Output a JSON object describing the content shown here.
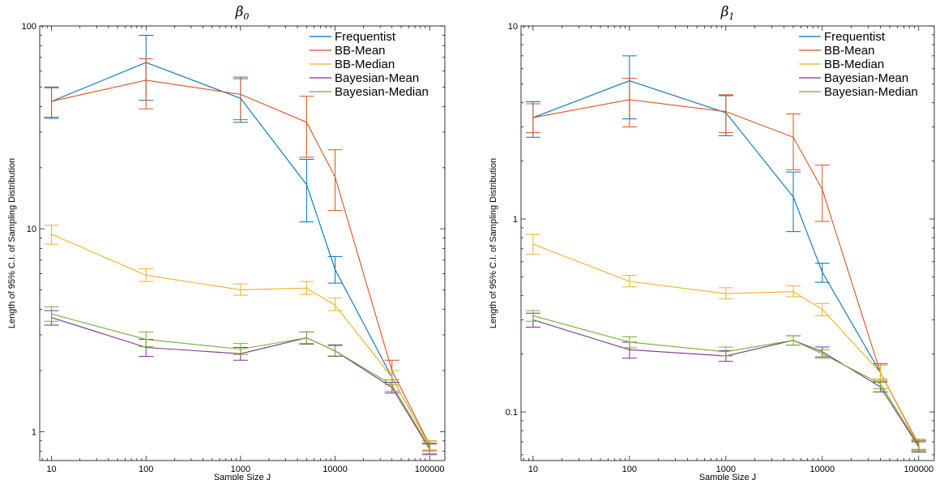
{
  "chart_data": [
    {
      "type": "line",
      "title": "β",
      "title_subscript": "0",
      "xlabel": "Sample Size J",
      "ylabel": "Length of 95% C.I. of Sampling Distribution",
      "xscale": "log",
      "yscale": "log",
      "xlim": [
        7.5,
        145000
      ],
      "ylim": [
        0.72,
        100
      ],
      "xticks": [
        10,
        100,
        1000,
        10000,
        100000
      ],
      "xtick_labels": [
        "10",
        "100",
        "1000",
        "10000",
        "100000"
      ],
      "yticks": [
        1,
        10,
        100
      ],
      "ytick_labels": [
        "1",
        "10",
        "100"
      ],
      "grid": false,
      "legend": "top-right",
      "x": [
        10,
        100,
        1000,
        5000,
        10000,
        40000,
        100000
      ],
      "series": [
        {
          "name": "Frequentist",
          "color": "#0072BD",
          "values": [
            42.5,
            66,
            44,
            16.5,
            6.3,
            1.85,
            0.85
          ],
          "err_low": [
            35,
            43,
            33.5,
            10.8,
            5.4,
            1.7,
            0.8
          ],
          "err_high": [
            50,
            90,
            55,
            22,
            7.3,
            2.0,
            0.9
          ]
        },
        {
          "name": "BB-Mean",
          "color": "#D95319",
          "values": [
            42.5,
            54,
            46,
            33.5,
            18,
            2.0,
            0.86
          ],
          "err_low": [
            35.5,
            39,
            34.5,
            22.5,
            12.3,
            1.8,
            0.81
          ],
          "err_high": [
            49.5,
            69,
            56,
            45,
            24.5,
            2.25,
            0.9
          ]
        },
        {
          "name": "BB-Median",
          "color": "#EDB120",
          "values": [
            9.4,
            5.9,
            5.0,
            5.1,
            4.2,
            1.85,
            0.85
          ],
          "err_low": [
            8.4,
            5.5,
            4.7,
            4.75,
            3.95,
            1.7,
            0.8
          ],
          "err_high": [
            10.4,
            6.35,
            5.35,
            5.5,
            4.55,
            2.0,
            0.9
          ]
        },
        {
          "name": "Bayesian-Mean",
          "color": "#7E2F8E",
          "values": [
            3.65,
            2.6,
            2.42,
            2.9,
            2.5,
            1.65,
            0.82
          ],
          "err_low": [
            3.35,
            2.35,
            2.25,
            2.7,
            2.35,
            1.55,
            0.77
          ],
          "err_high": [
            3.95,
            2.85,
            2.6,
            3.1,
            2.68,
            1.75,
            0.87
          ]
        },
        {
          "name": "Bayesian-Median",
          "color": "#77AC30",
          "values": [
            3.8,
            2.85,
            2.55,
            2.9,
            2.5,
            1.7,
            0.83
          ],
          "err_low": [
            3.5,
            2.62,
            2.4,
            2.72,
            2.36,
            1.58,
            0.78
          ],
          "err_high": [
            4.12,
            3.1,
            2.72,
            3.1,
            2.65,
            1.8,
            0.88
          ]
        }
      ]
    },
    {
      "type": "line",
      "title": "β",
      "title_subscript": "1",
      "xlabel": "Sample Size J",
      "ylabel": "Length of 95% C.I. of Sampling Distribution",
      "xscale": "log",
      "yscale": "log",
      "xlim": [
        7.5,
        145000
      ],
      "ylim": [
        0.056,
        10
      ],
      "xticks": [
        10,
        100,
        1000,
        10000,
        100000
      ],
      "xtick_labels": [
        "10",
        "100",
        "1000",
        "10000",
        "100000"
      ],
      "yticks": [
        0.1,
        1,
        10
      ],
      "ytick_labels": [
        "0.1",
        "1",
        "10"
      ],
      "grid": false,
      "legend": "top-right",
      "x": [
        10,
        100,
        1000,
        5000,
        10000,
        40000,
        100000
      ],
      "series": [
        {
          "name": "Frequentist",
          "color": "#0072BD",
          "values": [
            3.35,
            5.2,
            3.55,
            1.3,
            0.53,
            0.16,
            0.067
          ],
          "err_low": [
            2.65,
            3.3,
            2.7,
            0.86,
            0.47,
            0.145,
            0.063
          ],
          "err_high": [
            4.05,
            7.0,
            4.35,
            1.75,
            0.59,
            0.175,
            0.071
          ]
        },
        {
          "name": "BB-Mean",
          "color": "#D95319",
          "values": [
            3.35,
            4.15,
            3.6,
            2.65,
            1.42,
            0.16,
            0.068
          ],
          "err_low": [
            2.8,
            3.0,
            2.8,
            1.8,
            0.97,
            0.145,
            0.064
          ],
          "err_high": [
            3.95,
            5.35,
            4.4,
            3.5,
            1.9,
            0.178,
            0.072
          ]
        },
        {
          "name": "BB-Median",
          "color": "#EDB120",
          "values": [
            0.74,
            0.475,
            0.41,
            0.42,
            0.34,
            0.16,
            0.067
          ],
          "err_low": [
            0.655,
            0.445,
            0.385,
            0.395,
            0.315,
            0.145,
            0.063
          ],
          "err_high": [
            0.83,
            0.51,
            0.44,
            0.45,
            0.365,
            0.175,
            0.071
          ]
        },
        {
          "name": "Bayesian-Mean",
          "color": "#7E2F8E",
          "values": [
            0.3,
            0.21,
            0.195,
            0.235,
            0.205,
            0.135,
            0.066
          ],
          "err_low": [
            0.275,
            0.19,
            0.183,
            0.222,
            0.193,
            0.127,
            0.062
          ],
          "err_high": [
            0.325,
            0.23,
            0.208,
            0.248,
            0.217,
            0.143,
            0.07
          ]
        },
        {
          "name": "Bayesian-Median",
          "color": "#77AC30",
          "values": [
            0.315,
            0.23,
            0.205,
            0.235,
            0.2,
            0.14,
            0.067
          ],
          "err_low": [
            0.295,
            0.215,
            0.195,
            0.222,
            0.19,
            0.132,
            0.063
          ],
          "err_high": [
            0.335,
            0.245,
            0.217,
            0.248,
            0.21,
            0.148,
            0.071
          ]
        }
      ]
    }
  ]
}
